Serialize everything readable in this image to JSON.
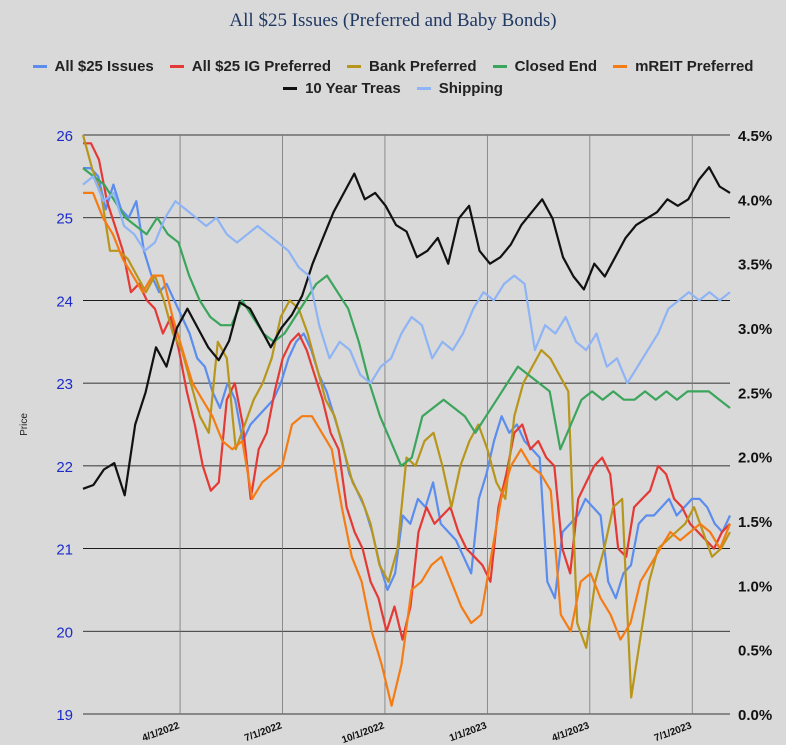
{
  "chart_data": {
    "type": "line",
    "title": "All $25 Issues (Preferred and Baby Bonds)",
    "ylabel": "Price",
    "ylim": [
      19,
      26
    ],
    "y2lim": [
      0.0,
      4.5
    ],
    "y_ticks": [
      "19",
      "20",
      "21",
      "22",
      "23",
      "24",
      "25",
      "26"
    ],
    "y2_ticks": [
      "0.0%",
      "0.5%",
      "1.0%",
      "1.5%",
      "2.0%",
      "2.5%",
      "3.0%",
      "3.5%",
      "4.0%",
      "4.5%"
    ],
    "x_ticks": [
      "4/1/2022",
      "7/1/2022",
      "10/1/2022",
      "1/1/2023",
      "4/1/2023",
      "7/1/2023"
    ],
    "x_tick_positions": [
      18,
      37,
      56,
      75,
      94,
      113
    ],
    "legend_position": "top",
    "grid": true,
    "series": [
      {
        "name": "All $25 Issues",
        "axis": "left",
        "color": "#5b8def",
        "values": [
          25.6,
          25.6,
          25.5,
          25.1,
          25.4,
          25.1,
          25.0,
          25.2,
          24.6,
          24.3,
          24.1,
          24.2,
          24.0,
          23.8,
          23.6,
          23.3,
          23.2,
          22.9,
          22.7,
          23.0,
          22.8,
          22.3,
          22.5,
          22.6,
          22.7,
          22.8,
          23.0,
          23.3,
          23.5,
          23.6,
          23.4,
          23.1,
          22.9,
          22.6,
          22.3,
          21.9,
          21.7,
          21.5,
          21.2,
          20.8,
          20.5,
          20.7,
          21.4,
          21.3,
          21.6,
          21.5,
          21.8,
          21.3,
          21.2,
          21.1,
          20.9,
          20.7,
          21.6,
          21.9,
          22.3,
          22.6,
          22.4,
          22.5,
          22.3,
          22.2,
          22.1,
          20.6,
          20.4,
          21.2,
          21.3,
          21.4,
          21.6,
          21.5,
          21.4,
          20.6,
          20.4,
          20.7,
          20.8,
          21.3,
          21.4,
          21.4,
          21.5,
          21.6,
          21.4,
          21.5,
          21.6,
          21.6,
          21.5,
          21.3,
          21.2,
          21.4
        ]
      },
      {
        "name": "All $25 IG Preferred",
        "axis": "left",
        "color": "#e53935",
        "values": [
          25.9,
          25.9,
          25.7,
          25.2,
          24.9,
          24.6,
          24.1,
          24.2,
          24.0,
          23.9,
          23.6,
          23.8,
          23.4,
          22.9,
          22.5,
          22.0,
          21.7,
          21.8,
          22.8,
          23.0,
          22.5,
          21.6,
          22.2,
          22.4,
          22.9,
          23.3,
          23.5,
          23.6,
          23.4,
          23.1,
          22.8,
          22.4,
          22.2,
          21.5,
          21.2,
          21.0,
          20.6,
          20.4,
          20.0,
          20.3,
          19.9,
          20.3,
          21.2,
          21.5,
          21.3,
          21.4,
          21.5,
          21.2,
          21.0,
          20.9,
          20.8,
          20.6,
          21.5,
          21.9,
          22.4,
          22.5,
          22.2,
          22.3,
          22.1,
          22.0,
          21.0,
          20.7,
          21.6,
          21.8,
          22.0,
          22.1,
          21.9,
          21.0,
          20.9,
          21.5,
          21.6,
          21.7,
          22.0,
          21.9,
          21.6,
          21.5,
          21.3,
          21.2,
          21.1,
          21.0,
          21.2,
          21.3
        ]
      },
      {
        "name": "Bank Preferred",
        "axis": "left",
        "color": "#b8961b",
        "values": [
          26.0,
          25.6,
          25.3,
          24.6,
          24.6,
          24.5,
          24.3,
          24.1,
          24.3,
          24.0,
          23.6,
          23.4,
          23.0,
          22.6,
          22.4,
          23.5,
          23.3,
          22.2,
          22.5,
          22.8,
          23.0,
          23.3,
          23.8,
          24.0,
          23.9,
          23.6,
          23.2,
          22.8,
          22.6,
          22.2,
          21.8,
          21.6,
          21.3,
          20.8,
          20.6,
          21.0,
          22.1,
          22.0,
          22.3,
          22.4,
          22.0,
          21.5,
          22.0,
          22.3,
          22.5,
          22.2,
          21.8,
          21.6,
          22.6,
          23.0,
          23.2,
          23.4,
          23.3,
          23.1,
          22.9,
          20.1,
          19.8,
          20.6,
          21.0,
          21.5,
          21.6,
          19.2,
          19.9,
          20.6,
          21.0,
          21.1,
          21.2,
          21.3,
          21.5,
          21.2,
          20.9,
          21.0,
          21.2
        ]
      },
      {
        "name": "Closed End",
        "axis": "left",
        "color": "#3ca55c",
        "values": [
          25.6,
          25.5,
          25.4,
          25.2,
          25.0,
          24.9,
          24.8,
          25.0,
          24.8,
          24.7,
          24.3,
          24.0,
          23.8,
          23.7,
          23.7,
          24.0,
          23.8,
          23.6,
          23.5,
          23.6,
          23.8,
          24.0,
          24.2,
          24.3,
          24.1,
          23.9,
          23.5,
          23.0,
          22.6,
          22.3,
          22.0,
          22.1,
          22.6,
          22.7,
          22.8,
          22.7,
          22.6,
          22.4,
          22.6,
          22.8,
          23.0,
          23.2,
          23.1,
          23.0,
          22.9,
          22.2,
          22.5,
          22.8,
          22.9,
          22.8,
          22.9,
          22.8,
          22.8,
          22.9,
          22.8,
          22.9,
          22.8,
          22.9,
          22.9,
          22.9,
          22.8,
          22.7
        ]
      },
      {
        "name": "mREIT Preferred",
        "axis": "left",
        "color": "#f57c14",
        "values": [
          25.3,
          25.3,
          25.0,
          24.8,
          24.5,
          24.3,
          24.1,
          24.3,
          24.3,
          23.8,
          23.4,
          23.0,
          22.8,
          22.6,
          22.3,
          22.2,
          22.3,
          21.6,
          21.8,
          21.9,
          22.0,
          22.5,
          22.6,
          22.6,
          22.4,
          22.2,
          21.5,
          20.9,
          20.6,
          20.0,
          19.6,
          19.1,
          19.6,
          20.5,
          20.6,
          20.8,
          20.9,
          20.6,
          20.3,
          20.1,
          20.2,
          20.9,
          21.6,
          22.0,
          22.2,
          22.0,
          21.9,
          21.7,
          20.2,
          20.0,
          20.6,
          20.7,
          20.4,
          20.2,
          19.9,
          20.1,
          20.6,
          20.8,
          21.0,
          21.2,
          21.1,
          21.2,
          21.3,
          21.2,
          21.0,
          21.3
        ]
      },
      {
        "name": "10 Year Treas",
        "axis": "right",
        "color": "#111111",
        "values": [
          1.75,
          1.78,
          1.9,
          1.95,
          1.7,
          2.25,
          2.5,
          2.85,
          2.7,
          3.0,
          3.15,
          3.0,
          2.85,
          2.75,
          2.9,
          3.2,
          3.15,
          3.0,
          2.85,
          3.0,
          3.1,
          3.25,
          3.5,
          3.7,
          3.9,
          4.05,
          4.2,
          4.0,
          4.05,
          3.95,
          3.8,
          3.75,
          3.55,
          3.6,
          3.7,
          3.5,
          3.85,
          3.95,
          3.6,
          3.5,
          3.55,
          3.65,
          3.8,
          3.9,
          4.0,
          3.85,
          3.55,
          3.4,
          3.3,
          3.5,
          3.4,
          3.55,
          3.7,
          3.8,
          3.85,
          3.9,
          4.0,
          3.95,
          4.0,
          4.15,
          4.25,
          4.1,
          4.05
        ]
      },
      {
        "name": "Shipping",
        "axis": "left",
        "color": "#8eb4f5",
        "values": [
          25.4,
          25.5,
          25.2,
          25.3,
          24.9,
          24.8,
          24.6,
          24.7,
          25.0,
          25.2,
          25.1,
          25.0,
          24.9,
          25.0,
          24.8,
          24.7,
          24.8,
          24.9,
          24.8,
          24.7,
          24.6,
          24.4,
          24.3,
          23.7,
          23.3,
          23.5,
          23.4,
          23.1,
          23.0,
          23.2,
          23.3,
          23.6,
          23.8,
          23.7,
          23.3,
          23.5,
          23.4,
          23.6,
          23.9,
          24.1,
          24.0,
          24.2,
          24.3,
          24.2,
          23.4,
          23.7,
          23.6,
          23.8,
          23.5,
          23.4,
          23.6,
          23.2,
          23.3,
          23.0,
          23.2,
          23.4,
          23.6,
          23.9,
          24.0,
          24.1,
          24.0,
          24.1,
          24.0,
          24.1
        ]
      }
    ]
  }
}
